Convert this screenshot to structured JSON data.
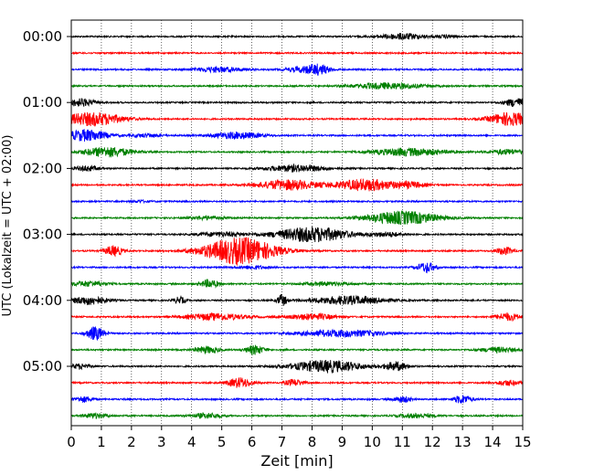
{
  "chart_data": {
    "type": "line",
    "title": "",
    "xlabel": "Zeit  [min]",
    "ylabel": "UTC (Lokalzeit = UTC + 02:00)",
    "xlim": [
      0,
      15
    ],
    "x_ticks": [
      "0",
      "1",
      "2",
      "3",
      "4",
      "5",
      "6",
      "7",
      "8",
      "9",
      "10",
      "11",
      "12",
      "13",
      "14",
      "15"
    ],
    "y_tick_labels": [
      "00:00",
      "01:00",
      "02:00",
      "03:00",
      "04:00",
      "05:00"
    ],
    "vertical_grid": true,
    "trace_interval_min": 15,
    "traces": [
      {
        "start": "00:00",
        "color": "#000000",
        "bursts": [
          {
            "t": 11.0,
            "amp": 0.35,
            "w": 0.8
          },
          {
            "t": 12.5,
            "amp": 0.18,
            "w": 0.3
          }
        ]
      },
      {
        "start": "00:15",
        "color": "#ff0000",
        "bursts": []
      },
      {
        "start": "00:30",
        "color": "#0000ff",
        "bursts": [
          {
            "t": 4.9,
            "amp": 0.3,
            "w": 0.8
          },
          {
            "t": 8.2,
            "amp": 0.6,
            "w": 0.4
          },
          {
            "t": 7.6,
            "amp": 0.25,
            "w": 0.5
          }
        ]
      },
      {
        "start": "00:45",
        "color": "#008000",
        "bursts": [
          {
            "t": 10.5,
            "amp": 0.35,
            "w": 1.2
          }
        ]
      },
      {
        "start": "01:00",
        "color": "#000000",
        "bursts": [
          {
            "t": 0.3,
            "amp": 0.45,
            "w": 0.5
          },
          {
            "t": 14.8,
            "amp": 0.5,
            "w": 0.4
          }
        ]
      },
      {
        "start": "01:15",
        "color": "#ff0000",
        "bursts": [
          {
            "t": 0.7,
            "amp": 0.8,
            "w": 1.0
          },
          {
            "t": 14.6,
            "amp": 0.8,
            "w": 0.7
          }
        ]
      },
      {
        "start": "01:30",
        "color": "#0000ff",
        "bursts": [
          {
            "t": 0.5,
            "amp": 0.7,
            "w": 0.7
          },
          {
            "t": 5.5,
            "amp": 0.4,
            "w": 0.8
          },
          {
            "t": 2.5,
            "amp": 0.2,
            "w": 0.5
          }
        ]
      },
      {
        "start": "01:45",
        "color": "#008000",
        "bursts": [
          {
            "t": 1.2,
            "amp": 0.6,
            "w": 0.8
          },
          {
            "t": 11.2,
            "amp": 0.45,
            "w": 1.2
          },
          {
            "t": 14.5,
            "amp": 0.3,
            "w": 0.6
          }
        ]
      },
      {
        "start": "02:00",
        "color": "#000000",
        "bursts": [
          {
            "t": 0.5,
            "amp": 0.3,
            "w": 0.4
          },
          {
            "t": 7.5,
            "amp": 0.4,
            "w": 1.0
          }
        ]
      },
      {
        "start": "02:15",
        "color": "#ff0000",
        "bursts": [
          {
            "t": 7.2,
            "amp": 0.6,
            "w": 1.0
          },
          {
            "t": 9.8,
            "amp": 0.7,
            "w": 1.0
          },
          {
            "t": 11.3,
            "amp": 0.3,
            "w": 0.5
          }
        ]
      },
      {
        "start": "02:30",
        "color": "#0000ff",
        "bursts": [
          {
            "t": 2.3,
            "amp": 0.12,
            "w": 0.3
          }
        ]
      },
      {
        "start": "02:45",
        "color": "#008000",
        "bursts": [
          {
            "t": 11.0,
            "amp": 0.8,
            "w": 1.2
          },
          {
            "t": 4.5,
            "amp": 0.2,
            "w": 0.6
          }
        ]
      },
      {
        "start": "03:00",
        "color": "#000000",
        "bursts": [
          {
            "t": 8.0,
            "amp": 0.9,
            "w": 1.2
          },
          {
            "t": 5.0,
            "amp": 0.25,
            "w": 0.8
          },
          {
            "t": 10.5,
            "amp": 0.25,
            "w": 0.6
          }
        ]
      },
      {
        "start": "03:15",
        "color": "#ff0000",
        "bursts": [
          {
            "t": 5.6,
            "amp": 1.6,
            "w": 1.2
          },
          {
            "t": 1.4,
            "amp": 0.6,
            "w": 0.3
          },
          {
            "t": 14.4,
            "amp": 0.45,
            "w": 0.3
          }
        ]
      },
      {
        "start": "03:30",
        "color": "#0000ff",
        "bursts": [
          {
            "t": 11.8,
            "amp": 0.6,
            "w": 0.3
          },
          {
            "t": 6.0,
            "amp": 0.2,
            "w": 0.5
          }
        ]
      },
      {
        "start": "03:45",
        "color": "#008000",
        "bursts": [
          {
            "t": 0.6,
            "amp": 0.3,
            "w": 0.6
          },
          {
            "t": 4.6,
            "amp": 0.5,
            "w": 0.3
          },
          {
            "t": 8.5,
            "amp": 0.2,
            "w": 0.8
          }
        ]
      },
      {
        "start": "04:00",
        "color": "#000000",
        "bursts": [
          {
            "t": 0.6,
            "amp": 0.5,
            "w": 0.6
          },
          {
            "t": 3.6,
            "amp": 0.4,
            "w": 0.2
          },
          {
            "t": 7.0,
            "amp": 0.7,
            "w": 0.15
          },
          {
            "t": 9.2,
            "amp": 0.5,
            "w": 1.2
          }
        ]
      },
      {
        "start": "04:15",
        "color": "#ff0000",
        "bursts": [
          {
            "t": 4.8,
            "amp": 0.4,
            "w": 1.0
          },
          {
            "t": 8.0,
            "amp": 0.35,
            "w": 0.8
          },
          {
            "t": 14.5,
            "amp": 0.45,
            "w": 0.4
          }
        ]
      },
      {
        "start": "04:30",
        "color": "#0000ff",
        "bursts": [
          {
            "t": 0.8,
            "amp": 0.8,
            "w": 0.3
          },
          {
            "t": 9.0,
            "amp": 0.4,
            "w": 1.4
          }
        ]
      },
      {
        "start": "04:45",
        "color": "#008000",
        "bursts": [
          {
            "t": 4.5,
            "amp": 0.4,
            "w": 0.4
          },
          {
            "t": 6.1,
            "amp": 0.55,
            "w": 0.3
          },
          {
            "t": 14.2,
            "amp": 0.3,
            "w": 0.6
          }
        ]
      },
      {
        "start": "05:00",
        "color": "#000000",
        "bursts": [
          {
            "t": 0.3,
            "amp": 0.3,
            "w": 0.3
          },
          {
            "t": 8.5,
            "amp": 0.7,
            "w": 1.2
          },
          {
            "t": 10.8,
            "amp": 0.5,
            "w": 0.4
          }
        ]
      },
      {
        "start": "05:15",
        "color": "#ff0000",
        "bursts": [
          {
            "t": 5.6,
            "amp": 0.6,
            "w": 0.4
          },
          {
            "t": 7.4,
            "amp": 0.4,
            "w": 0.3
          },
          {
            "t": 14.5,
            "amp": 0.3,
            "w": 0.4
          }
        ]
      },
      {
        "start": "05:30",
        "color": "#0000ff",
        "bursts": [
          {
            "t": 0.4,
            "amp": 0.35,
            "w": 0.3
          },
          {
            "t": 11.0,
            "amp": 0.35,
            "w": 0.3
          },
          {
            "t": 13.0,
            "amp": 0.5,
            "w": 0.3
          }
        ]
      },
      {
        "start": "05:45",
        "color": "#008000",
        "bursts": [
          {
            "t": 0.8,
            "amp": 0.3,
            "w": 0.4
          },
          {
            "t": 4.5,
            "amp": 0.3,
            "w": 0.5
          },
          {
            "t": 11.5,
            "amp": 0.25,
            "w": 0.6
          }
        ]
      }
    ]
  }
}
